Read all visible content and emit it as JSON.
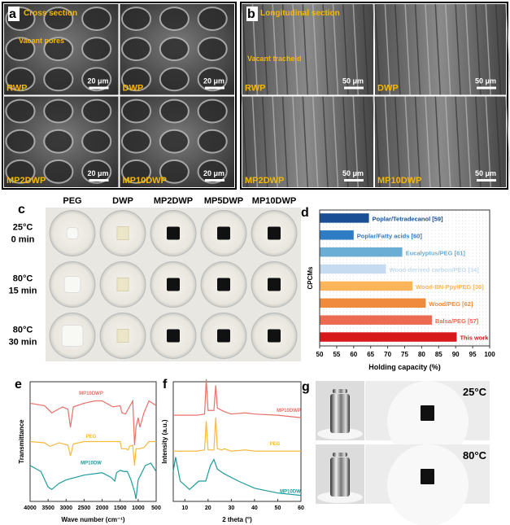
{
  "panel_a": {
    "letter": "a",
    "title": "Cross section",
    "annotation": "Vacant pores",
    "images": [
      {
        "label": "RWP",
        "scale": "20 μm"
      },
      {
        "label": "DWP",
        "scale": "20 μm"
      },
      {
        "label": "MP2DWP",
        "scale": "20 μm"
      },
      {
        "label": "MP10DWP",
        "scale": "20 μm"
      }
    ]
  },
  "panel_b": {
    "letter": "b",
    "title": "Longitudinal section",
    "annotation": "Vacant tracheid",
    "images": [
      {
        "label": "RWP",
        "scale": "50 μm"
      },
      {
        "label": "DWP",
        "scale": "50 μm"
      },
      {
        "label": "MP2DWP",
        "scale": "50 μm"
      },
      {
        "label": "MP10DWP",
        "scale": "50 μm"
      }
    ]
  },
  "panel_c": {
    "letter": "c",
    "columns": [
      "PEG",
      "DWP",
      "MP2DWP",
      "MP5DWP",
      "MP10DWP"
    ],
    "rows": [
      {
        "temp": "25°C",
        "time": "0 min"
      },
      {
        "temp": "80°C",
        "time": "15 min"
      },
      {
        "temp": "80°C",
        "time": "30 min"
      }
    ]
  },
  "panel_g": {
    "letter": "g",
    "labels": [
      "25°C",
      "80°C"
    ]
  },
  "chart_data": [
    {
      "panel": "d",
      "type": "bar",
      "orientation": "horizontal",
      "xlabel": "Holding capacity (%)",
      "ylabel": "CPCMs",
      "xlim": [
        50,
        100
      ],
      "xticks": [
        "50",
        "55",
        "60",
        "65",
        "70",
        "75",
        "80",
        "85",
        "90",
        "95",
        "100"
      ],
      "categories": [
        "Poplar/Tetradecanol [59]",
        "Poplar/Fatty acids [60]",
        "Eucalyptus/PEG [61]",
        "Wood-derived carbon/PEG [34]",
        "Wood-BN-Ppy/PEG [36]",
        "Wood/PEG [62]",
        "Balsa/PEG [57]",
        "This work"
      ],
      "values": [
        64.5,
        60,
        74.3,
        69.5,
        77.3,
        81.2,
        83,
        90.3
      ],
      "colors": [
        "#1a4f96",
        "#2e7cc4",
        "#6aaed6",
        "#c6dbef",
        "#fdb55a",
        "#f08a3c",
        "#ec6a50",
        "#d7191c"
      ]
    },
    {
      "panel": "e",
      "type": "line",
      "xlabel": "Wave number (cm⁻¹)",
      "ylabel": "Transmittance",
      "xlim": [
        4000,
        500
      ],
      "xticks": [
        "4000",
        "3500",
        "3000",
        "2500",
        "2000",
        "1500",
        "1000",
        "500"
      ],
      "series": [
        {
          "name": "MP10DWP",
          "color": "#e8706a",
          "offset": 0.82,
          "x": [
            4000,
            3600,
            3400,
            3100,
            2950,
            2880,
            2800,
            2500,
            2200,
            2000,
            1700,
            1500,
            1450,
            1350,
            1280,
            1150,
            1100,
            1060,
            1000,
            950,
            840,
            700,
            500
          ],
          "y": [
            0,
            -0.02,
            -0.08,
            -0.03,
            -0.05,
            -0.2,
            -0.03,
            0,
            0.02,
            0.02,
            -0.03,
            -0.02,
            -0.08,
            -0.09,
            -0.05,
            0.02,
            -0.35,
            -0.2,
            -0.12,
            -0.2,
            -0.08,
            0.02,
            -0.02
          ]
        },
        {
          "name": "PEG",
          "color": "#f5b93c",
          "offset": 0.5,
          "x": [
            4000,
            3600,
            3450,
            3200,
            2950,
            2880,
            2800,
            2500,
            2000,
            1500,
            1460,
            1340,
            1280,
            1240,
            1150,
            1100,
            1060,
            960,
            840,
            700,
            500
          ],
          "y": [
            0,
            -0.01,
            -0.04,
            -0.01,
            -0.03,
            -0.12,
            -0.02,
            0,
            0,
            0,
            -0.06,
            -0.06,
            -0.07,
            -0.04,
            -0.03,
            -0.2,
            -0.06,
            -0.06,
            -0.05,
            0,
            0
          ]
        },
        {
          "name": "MP10DW",
          "color": "#1f9a9a",
          "offset": 0.3,
          "x": [
            4000,
            3700,
            3500,
            3400,
            3200,
            3000,
            2500,
            2000,
            1750,
            1650,
            1600,
            1500,
            1400,
            1300,
            1200,
            1100,
            1060,
            1000,
            800,
            650,
            500
          ],
          "y": [
            0,
            -0.05,
            -0.18,
            -0.2,
            -0.15,
            -0.12,
            -0.08,
            -0.06,
            -0.1,
            -0.13,
            -0.06,
            -0.04,
            -0.05,
            -0.05,
            -0.12,
            -0.22,
            -0.28,
            -0.12,
            0,
            0.02,
            -0.05
          ]
        }
      ]
    },
    {
      "panel": "f",
      "type": "line",
      "xlabel": "2 theta (°)",
      "ylabel": "Intensity (a.u.)",
      "xlim": [
        5,
        60
      ],
      "xticks": [
        "10",
        "20",
        "30",
        "40",
        "50",
        "60"
      ],
      "series": [
        {
          "name": "MP10DWP",
          "color": "#e8706a",
          "offset": 0.72,
          "x": [
            5,
            15,
            18.5,
            19.2,
            20,
            22.5,
            23.3,
            24,
            26,
            27,
            30,
            36,
            40,
            50,
            60
          ],
          "y": [
            0,
            0,
            0.01,
            0.3,
            0.04,
            0.04,
            0.25,
            0.06,
            0.04,
            0.03,
            0.01,
            0.02,
            0.01,
            0,
            -0.02
          ]
        },
        {
          "name": "PEG",
          "color": "#f5b93c",
          "offset": 0.42,
          "x": [
            5,
            15,
            18.5,
            19.2,
            20,
            22.5,
            23.3,
            24,
            26,
            27,
            30,
            36,
            40,
            50,
            60
          ],
          "y": [
            0,
            0,
            0.01,
            0.25,
            0.01,
            0.01,
            0.28,
            0.02,
            0.01,
            0.02,
            0,
            0.01,
            0,
            0,
            0
          ]
        },
        {
          "name": "MP10DW",
          "color": "#1f9a9a",
          "offset": 0.05,
          "x": [
            5,
            6,
            8,
            12,
            16,
            19,
            21,
            22.5,
            24,
            27,
            33,
            40,
            50,
            60
          ],
          "y": [
            0.2,
            0.32,
            0.12,
            0.05,
            0.12,
            0.12,
            0.25,
            0.3,
            0.22,
            0.18,
            0.12,
            0.06,
            0.02,
            0
          ]
        }
      ]
    }
  ]
}
